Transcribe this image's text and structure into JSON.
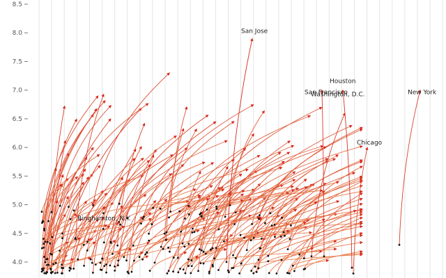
{
  "chart_data": {
    "type": "scatter",
    "title": "",
    "xlabel": "",
    "ylabel": "",
    "ylim": [
      3.8,
      8.6
    ],
    "grid": true,
    "y_ticks": [
      {
        "value": 4.0,
        "label": "4.0"
      },
      {
        "value": 4.5,
        "label": "4.5"
      },
      {
        "value": 5.0,
        "label": "5.0"
      },
      {
        "value": 5.5,
        "label": "5.5"
      },
      {
        "value": 6.0,
        "label": "6.0"
      },
      {
        "value": 6.5,
        "label": "6.5"
      },
      {
        "value": 7.0,
        "label": "7.0"
      },
      {
        "value": 7.5,
        "label": "7.5"
      },
      {
        "value": 8.0,
        "label": "8.0"
      },
      {
        "value": 8.5,
        "label": "8.5"
      }
    ],
    "colors": {
      "dot": "#111111",
      "arrow_low": "#f7b56b",
      "arrow_high": "#d42a1e"
    },
    "labeled_cities": [
      {
        "name": "San Jose",
        "start": 4.0,
        "end": 7.9
      },
      {
        "name": "Houston",
        "start": 3.9,
        "end": 7.0
      },
      {
        "name": "San Francisco",
        "start": 4.1,
        "end": 7.0
      },
      {
        "name": "New York",
        "start": 4.3,
        "end": 7.0
      },
      {
        "name": "Washington, D.C.",
        "start": 4.1,
        "end": 6.6
      },
      {
        "name": "Chicago",
        "start": 3.8,
        "end": 6.0
      },
      {
        "name": "Binghamton, N.Y.",
        "start": 4.9,
        "end": 4.8
      }
    ]
  }
}
